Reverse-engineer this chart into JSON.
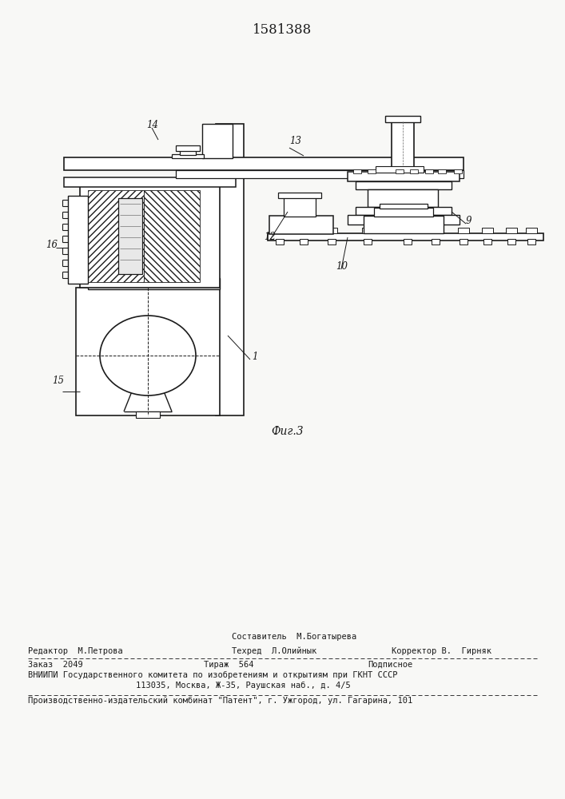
{
  "patent_number": "1581388",
  "fig_label": "Фиг.3",
  "bg_color": "#f8f8f6",
  "line_color": "#1a1a1a",
  "title_fontsize": 12,
  "label_fontsize": 8.5,
  "footer_fontsize": 7.5,
  "footer_line0": "Составитель  М.Богатырева",
  "footer_line1_left": "Редактор  М.Петрова",
  "footer_line1_center": "Техред  Л.Олийнык",
  "footer_line1_right": "Корректор В.  Гирняк",
  "footer_line2_col1": "Заказ  2049",
  "footer_line2_col2": "Тираж  564",
  "footer_line2_col3": "Подписное",
  "footer_line3": "ВНИИПИ Государственного комитета по изобретениям и открытиям при ГКНТ СССР",
  "footer_line4": "113035, Москва, Ж-35, Раушская наб., д. 4/5",
  "footer_line5": "Производственно-издательский комбинат \"Патент\", г. Ужгород, ул. Гагарина, 101"
}
